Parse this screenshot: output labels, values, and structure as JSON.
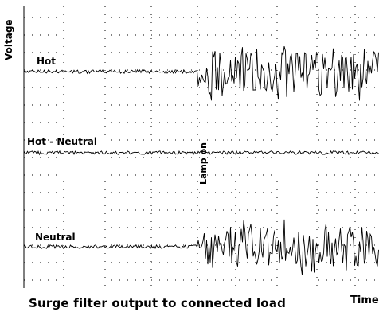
{
  "chart_data": {
    "type": "line",
    "title": "",
    "caption": "Surge filter output to connected load",
    "xlabel": "Time",
    "ylabel": "Voltage",
    "grid": true,
    "event_annotation": "Lamp on",
    "series": [
      {
        "name": "Hot",
        "baseline_amplitude": "low",
        "after_event_amplitude": "high"
      },
      {
        "name": "Hot - Neutral",
        "baseline_amplitude": "low",
        "after_event_amplitude": "low"
      },
      {
        "name": "Neutral",
        "baseline_amplitude": "low",
        "after_event_amplitude": "high"
      }
    ]
  }
}
